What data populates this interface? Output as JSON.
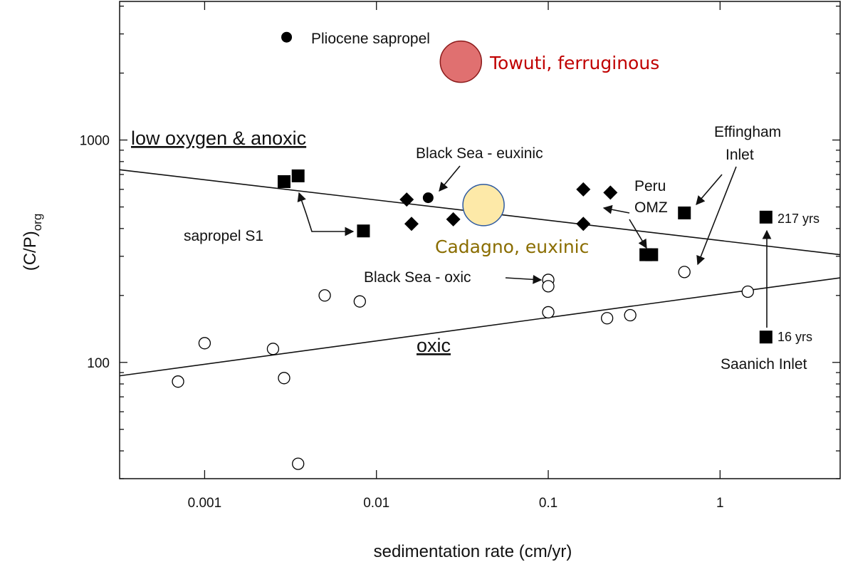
{
  "chart_data": {
    "type": "scatter",
    "title": "",
    "xlabel": "sedimentation rate  (cm/yr)",
    "ylabel_main": "(C/P)",
    "ylabel_sub": "org",
    "xscale": "log",
    "yscale": "log",
    "xlim": [
      0.00032,
      5.0
    ],
    "ylim": [
      30,
      4200
    ],
    "x_tick_labels": [
      "0.001",
      "0.01",
      "0.1",
      "1"
    ],
    "x_ticks": [
      0.001,
      0.01,
      0.1,
      1
    ],
    "y_tick_labels": [
      "100",
      "1000"
    ],
    "y_ticks": [
      100,
      1000
    ],
    "grid": false,
    "boundary_lines": [
      {
        "x": [
          0.00032,
          5.0
        ],
        "y": [
          735,
          305
        ]
      },
      {
        "x": [
          0.00032,
          5.0
        ],
        "y": [
          87,
          240
        ]
      }
    ],
    "series": [
      {
        "marker": "filled-circle",
        "points": [
          [
            0.003,
            2900
          ],
          [
            0.02,
            550
          ]
        ]
      },
      {
        "marker": "filled-square",
        "points": [
          [
            0.0029,
            650
          ],
          [
            0.0035,
            690
          ],
          [
            0.0084,
            390
          ],
          [
            0.37,
            305
          ],
          [
            0.4,
            305
          ],
          [
            0.62,
            470
          ],
          [
            1.85,
            450
          ],
          [
            1.85,
            130
          ]
        ]
      },
      {
        "marker": "filled-diamond",
        "points": [
          [
            0.015,
            540
          ],
          [
            0.016,
            420
          ],
          [
            0.028,
            440
          ],
          [
            0.16,
            600
          ],
          [
            0.23,
            580
          ],
          [
            0.16,
            420
          ]
        ]
      },
      {
        "marker": "open-circle",
        "points": [
          [
            0.0007,
            82
          ],
          [
            0.001,
            122
          ],
          [
            0.0025,
            115
          ],
          [
            0.0029,
            85
          ],
          [
            0.0035,
            35
          ],
          [
            0.005,
            200
          ],
          [
            0.008,
            188
          ],
          [
            0.1,
            235
          ],
          [
            0.1,
            220
          ],
          [
            0.1,
            168
          ],
          [
            0.22,
            158
          ],
          [
            0.3,
            163
          ],
          [
            0.62,
            255
          ],
          [
            1.45,
            208
          ]
        ]
      }
    ],
    "highlights": [
      {
        "label": "Towuti, ferruginous",
        "x": 0.031,
        "y": 2250,
        "color": "#e07070",
        "stroke": "#8b1a1a",
        "text_color": "#c00000"
      },
      {
        "label": "Cadagno, euxinic",
        "x": 0.042,
        "y": 510,
        "color": "#fde9a8",
        "stroke": "#2e5aa0",
        "text_color": "#8a6d00"
      }
    ],
    "annotations": {
      "pliocene": "Pliocene sapropel",
      "low_oxygen": "low oxygen & anoxic",
      "black_sea_euxinic": "Black Sea - euxinic",
      "effingham_line1": "Effingham",
      "effingham_line2": "Inlet",
      "peru_line1": "Peru",
      "peru_line2": "OMZ",
      "sapropel_s1": "sapropel S1",
      "black_sea_oxic": "Black Sea - oxic",
      "oxic": "oxic",
      "yrs_217": "217 yrs",
      "yrs_16": "16 yrs",
      "saanich": "Saanich Inlet"
    }
  }
}
